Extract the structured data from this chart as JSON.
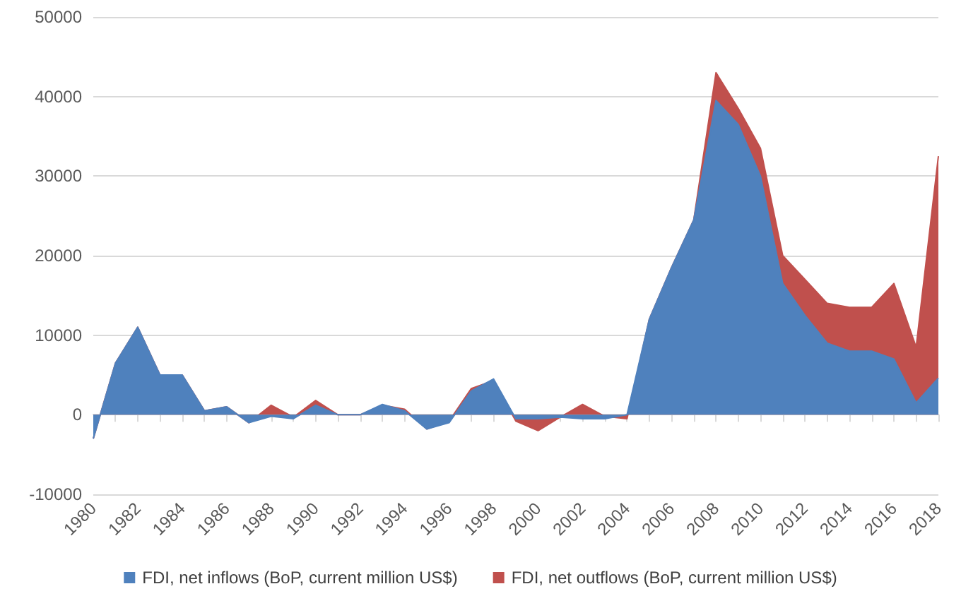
{
  "chart_data": {
    "type": "area",
    "categories": [
      "1980",
      null,
      "1982",
      null,
      "1984",
      null,
      "1986",
      null,
      "1988",
      null,
      "1990",
      null,
      "1992",
      null,
      "1994",
      null,
      "1996",
      null,
      "1998",
      null,
      "2000",
      null,
      "2002",
      null,
      "2004",
      null,
      "2006",
      null,
      "2008",
      null,
      "2010",
      null,
      "2012",
      null,
      "2014",
      null,
      "2016",
      null,
      "2018"
    ],
    "series": [
      {
        "name": "FDI, net inflows (BoP, current million US$)",
        "color": "#4f81bd",
        "values": [
          -3000,
          6500,
          11000,
          5000,
          5000,
          500,
          1000,
          -1000,
          -200,
          -500,
          1200,
          0,
          0,
          1300,
          500,
          -1800,
          -1000,
          3000,
          4500,
          -500,
          -500,
          -300,
          -500,
          -500,
          0,
          12000,
          18500,
          24500,
          39500,
          36500,
          30000,
          16500,
          12500,
          9000,
          8000,
          8000,
          7000,
          1500,
          4600
        ]
      },
      {
        "name": "FDI, net outflows (BoP, current million US$)",
        "color": "#c0504d",
        "values": [
          -3000,
          6500,
          11000,
          5000,
          5000,
          500,
          1000,
          -1000,
          1200,
          -300,
          1800,
          0,
          0,
          1200,
          700,
          -1800,
          -800,
          3300,
          4300,
          -800,
          -2000,
          -300,
          1300,
          -200,
          -500,
          12000,
          18500,
          24500,
          43000,
          38500,
          33500,
          20000,
          17000,
          14000,
          13500,
          13500,
          16500,
          8500,
          32500
        ]
      }
    ],
    "ylim": [
      -10000,
      50000
    ],
    "yticks": [
      -10000,
      0,
      10000,
      20000,
      30000,
      40000,
      50000
    ],
    "grid": "y",
    "legend": "bottom",
    "marker": "none"
  }
}
